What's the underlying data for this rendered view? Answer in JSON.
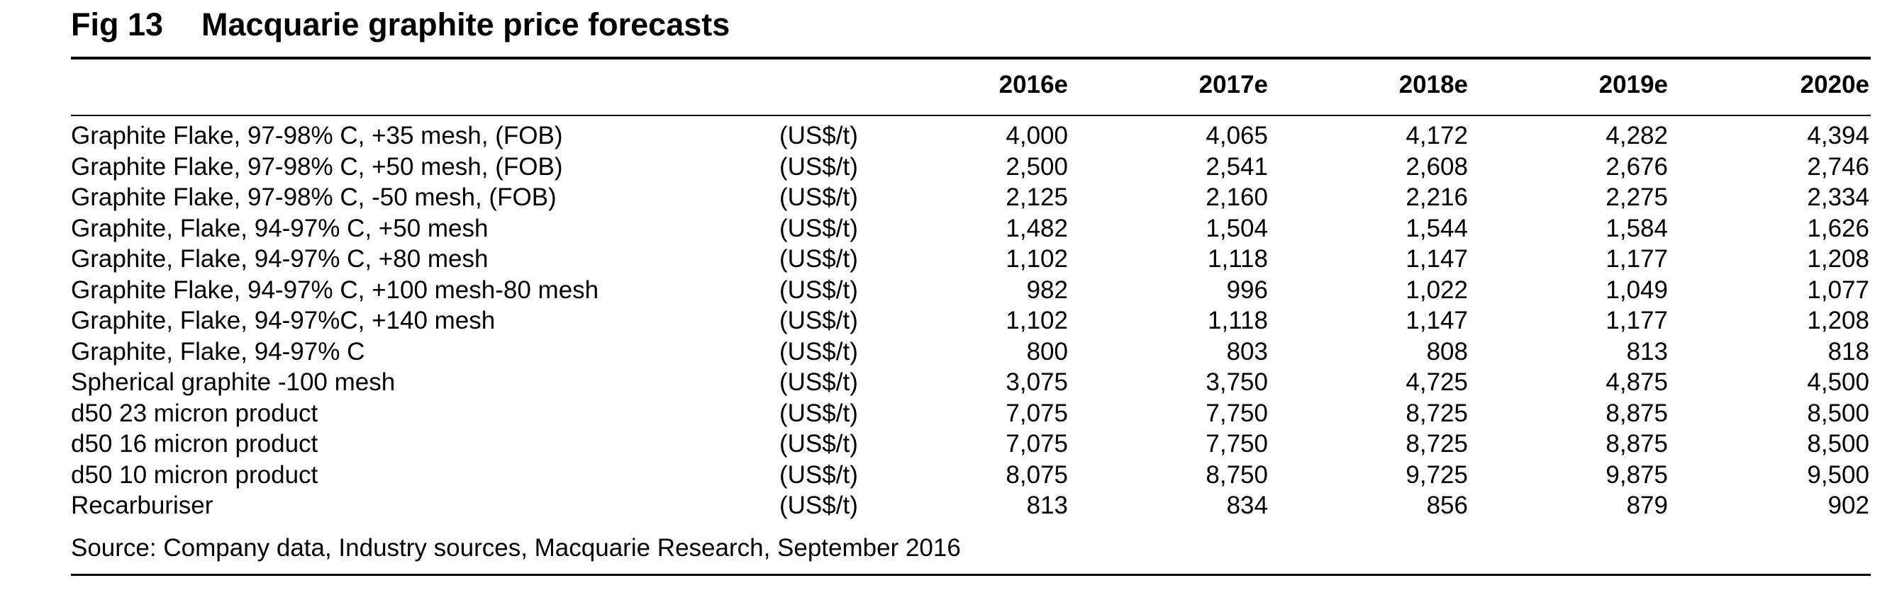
{
  "figure": {
    "number": "Fig 13",
    "title": "Macquarie graphite price forecasts"
  },
  "table": {
    "columns": [
      "2016e",
      "2017e",
      "2018e",
      "2019e",
      "2020e"
    ],
    "rows": [
      {
        "label": "Graphite Flake, 97-98% C, +35 mesh, (FOB)",
        "unit": "(US$/t)",
        "values": [
          "4,000",
          "4,065",
          "4,172",
          "4,282",
          "4,394"
        ]
      },
      {
        "label": "Graphite Flake, 97-98% C, +50 mesh, (FOB)",
        "unit": "(US$/t)",
        "values": [
          "2,500",
          "2,541",
          "2,608",
          "2,676",
          "2,746"
        ]
      },
      {
        "label": "Graphite Flake, 97-98% C, -50 mesh, (FOB)",
        "unit": "(US$/t)",
        "values": [
          "2,125",
          "2,160",
          "2,216",
          "2,275",
          "2,334"
        ]
      },
      {
        "label": "Graphite, Flake, 94-97% C, +50 mesh",
        "unit": "(US$/t)",
        "values": [
          "1,482",
          "1,504",
          "1,544",
          "1,584",
          "1,626"
        ]
      },
      {
        "label": "Graphite, Flake, 94-97% C, +80 mesh",
        "unit": "(US$/t)",
        "values": [
          "1,102",
          "1,118",
          "1,147",
          "1,177",
          "1,208"
        ]
      },
      {
        "label": "Graphite Flake, 94-97% C, +100 mesh-80 mesh",
        "unit": "(US$/t)",
        "values": [
          "982",
          "996",
          "1,022",
          "1,049",
          "1,077"
        ]
      },
      {
        "label": "Graphite, Flake, 94-97%C, +140 mesh",
        "unit": "(US$/t)",
        "values": [
          "1,102",
          "1,118",
          "1,147",
          "1,177",
          "1,208"
        ]
      },
      {
        "label": "Graphite, Flake, 94-97% C",
        "unit": "(US$/t)",
        "values": [
          "800",
          "803",
          "808",
          "813",
          "818"
        ]
      },
      {
        "label": "Spherical graphite -100 mesh",
        "unit": "(US$/t)",
        "values": [
          "3,075",
          "3,750",
          "4,725",
          "4,875",
          "4,500"
        ]
      },
      {
        "label": "d50 23 micron product",
        "unit": "(US$/t)",
        "values": [
          "7,075",
          "7,750",
          "8,725",
          "8,875",
          "8,500"
        ]
      },
      {
        "label": "d50 16 micron product",
        "unit": "(US$/t)",
        "values": [
          "7,075",
          "7,750",
          "8,725",
          "8,875",
          "8,500"
        ]
      },
      {
        "label": "d50 10 micron product",
        "unit": "(US$/t)",
        "values": [
          "8,075",
          "8,750",
          "9,725",
          "9,875",
          "9,500"
        ]
      },
      {
        "label": "Recarburiser",
        "unit": "(US$/t)",
        "values": [
          "813",
          "834",
          "856",
          "879",
          "902"
        ]
      }
    ]
  },
  "source": "Source: Company data, Industry sources, Macquarie Research, September 2016"
}
